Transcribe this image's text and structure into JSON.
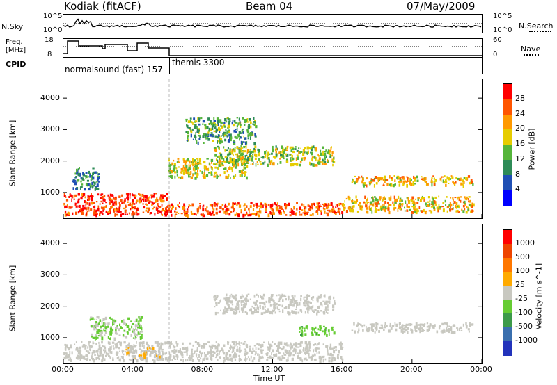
{
  "header": {
    "station": "Kodiak (fitACF)",
    "beam": "Beam 04",
    "date": "07/May/2009"
  },
  "panel_labels": {
    "nsky": "N.Sky",
    "nsearch": "N.Search",
    "freq_line1": "Freq.",
    "freq_line2": "[MHz]",
    "nave": "Nave",
    "cpid": "CPID"
  },
  "small_axes": {
    "nsky_left_ticks": [
      "10^5",
      "10^0"
    ],
    "nsky_right_ticks": [
      "10^5",
      "10^0"
    ],
    "freq_left_ticks": [
      "18",
      "8"
    ],
    "nave_right_ticks": [
      "60",
      "0"
    ]
  },
  "cpid_labels": [
    "normalsound (fast) 157",
    "themis 3300"
  ],
  "colors": {
    "power": [
      "#0000ff",
      "#1f4fb4",
      "#2e8b57",
      "#55b53a",
      "#e6cc00",
      "#ff9900",
      "#ff5500",
      "#ff0000"
    ],
    "velocity": [
      "#2233bb",
      "#3a6fae",
      "#3c9a4a",
      "#66cc33",
      "#c8c8c0",
      "#ffaa00",
      "#ff7700",
      "#ee4400",
      "#ff0000"
    ],
    "ground_scatter": "#bdbdb5"
  },
  "time_axis": {
    "labels": [
      "00:00",
      "04:00",
      "08:00",
      "12:00",
      "16:00",
      "20:00",
      "00:00"
    ],
    "title": "Time UT"
  },
  "chart_data": [
    {
      "type": "heatmap",
      "title": "Power [dB]",
      "ylabel": "Slant Range [km]",
      "xlabel": "Time UT",
      "xlim_hours": [
        0,
        24
      ],
      "ylim_km": [
        180,
        4600
      ],
      "y_ticks": [
        1000,
        2000,
        3000,
        4000
      ],
      "colorbar": {
        "label": "Power [dB]",
        "tick_labels": [
          "4",
          "8",
          "12",
          "16",
          "20",
          "24",
          "28"
        ],
        "range": [
          0,
          32
        ]
      },
      "echo_regions": [
        {
          "t": [
            0.0,
            6.0
          ],
          "r": [
            300,
            1000
          ],
          "value": 28
        },
        {
          "t": [
            6.0,
            16.0
          ],
          "r": [
            300,
            700
          ],
          "value": 26
        },
        {
          "t": [
            16.0,
            23.5
          ],
          "r": [
            400,
            900
          ],
          "value": 20
        },
        {
          "t": [
            0.5,
            2.0
          ],
          "r": [
            1100,
            1800
          ],
          "value": 10
        },
        {
          "t": [
            6.0,
            10.5
          ],
          "r": [
            1500,
            2100
          ],
          "value": 18
        },
        {
          "t": [
            8.5,
            15.5
          ],
          "r": [
            1900,
            2500
          ],
          "value": 16
        },
        {
          "t": [
            7.0,
            11.0
          ],
          "r": [
            2600,
            3400
          ],
          "value": 12
        },
        {
          "t": [
            16.5,
            23.5
          ],
          "r": [
            1250,
            1550
          ],
          "value": 20
        }
      ]
    },
    {
      "type": "heatmap",
      "title": "Velocity [m s^-1]",
      "ylabel": "Slant Range [km]",
      "xlabel": "Time UT",
      "xlim_hours": [
        0,
        24
      ],
      "ylim_km": [
        180,
        4600
      ],
      "y_ticks": [
        1000,
        2000,
        3000,
        4000
      ],
      "colorbar": {
        "label": "Velocity [m s^-1]",
        "tick_labels": [
          "1000",
          "500",
          "100",
          "25",
          "-25",
          "-100",
          "-500",
          "-1000"
        ],
        "range": [
          -1250,
          1250
        ]
      },
      "echo_regions": [
        {
          "t": [
            0.0,
            6.5
          ],
          "r": [
            300,
            900
          ],
          "value": 0
        },
        {
          "t": [
            1.5,
            4.5
          ],
          "r": [
            1000,
            1700
          ],
          "value": -150
        },
        {
          "t": [
            3.5,
            5.5
          ],
          "r": [
            400,
            700
          ],
          "value": 150
        },
        {
          "t": [
            6.0,
            16.0
          ],
          "r": [
            300,
            900
          ],
          "value": 0
        },
        {
          "t": [
            8.5,
            15.5
          ],
          "r": [
            1800,
            2400
          ],
          "value": 0
        },
        {
          "t": [
            13.5,
            15.5
          ],
          "r": [
            1100,
            1400
          ],
          "value": -300
        },
        {
          "t": [
            16.5,
            23.5
          ],
          "r": [
            1200,
            1500
          ],
          "value": 0
        }
      ]
    }
  ]
}
